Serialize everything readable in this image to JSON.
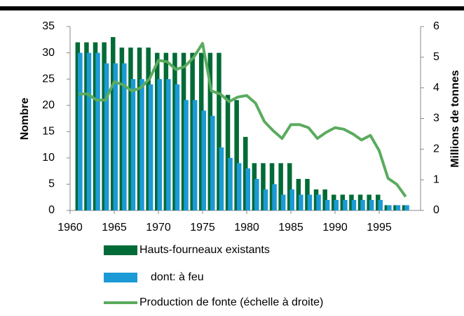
{
  "chart_data": {
    "type": "bar",
    "x": [
      1961,
      1962,
      1963,
      1964,
      1965,
      1966,
      1967,
      1968,
      1969,
      1970,
      1971,
      1972,
      1973,
      1974,
      1975,
      1976,
      1977,
      1978,
      1979,
      1980,
      1981,
      1982,
      1983,
      1984,
      1985,
      1986,
      1987,
      1988,
      1989,
      1990,
      1991,
      1992,
      1993,
      1994,
      1995,
      1996,
      1997,
      1998
    ],
    "series": [
      {
        "name": "Hauts-fourneaux existants",
        "color": "#006b36",
        "values": [
          32,
          32,
          32,
          32,
          33,
          31,
          31,
          31,
          31,
          30,
          30,
          30,
          30,
          30,
          30,
          30,
          30,
          22,
          21,
          14,
          9,
          9,
          9,
          9,
          9,
          6,
          6,
          4,
          4,
          3,
          3,
          3,
          3,
          3,
          3,
          1,
          1,
          1
        ]
      },
      {
        "name": "dont: à feu",
        "color": "#1b9ad6",
        "values": [
          30,
          30,
          30,
          28,
          28,
          28,
          25,
          25,
          24,
          25,
          25,
          24,
          21,
          21,
          19,
          18,
          12,
          10,
          9,
          8,
          6,
          4,
          5,
          3,
          4,
          3,
          3,
          3,
          2,
          2,
          2,
          2,
          2,
          2,
          2,
          1,
          1,
          1
        ]
      },
      {
        "name": "Production de fonte (échelle à droite)",
        "color": "#5aab5e",
        "axis": "y2",
        "type": "line",
        "values": [
          3.8,
          3.8,
          3.6,
          3.6,
          4.2,
          4.1,
          3.9,
          4.0,
          4.3,
          4.9,
          4.85,
          4.6,
          4.7,
          5.0,
          5.45,
          3.9,
          3.8,
          3.55,
          3.7,
          3.75,
          3.5,
          2.9,
          2.6,
          2.35,
          2.8,
          2.8,
          2.7,
          2.35,
          2.55,
          2.7,
          2.65,
          2.5,
          2.3,
          2.45,
          1.95,
          1.05,
          0.85,
          0.45
        ]
      }
    ],
    "ylabel": "Nombre",
    "y2label": "Millions de tonnes",
    "xlim": [
      1960,
      2000
    ],
    "xticks": [
      1960,
      1965,
      1970,
      1975,
      1980,
      1985,
      1990,
      1995
    ],
    "ylim": [
      0,
      35
    ],
    "yticks": [
      0,
      5,
      10,
      15,
      20,
      25,
      30,
      35
    ],
    "y2lim": [
      0,
      6
    ],
    "y2ticks": [
      0,
      1,
      2,
      3,
      4,
      5,
      6
    ],
    "grid": false
  }
}
